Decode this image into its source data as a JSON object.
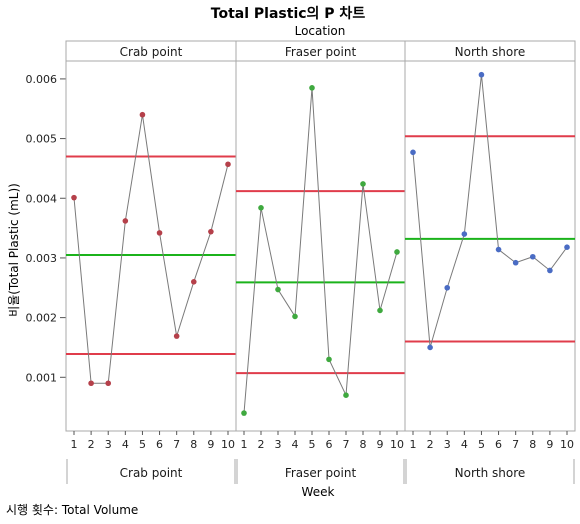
{
  "chart_data": {
    "type": "line",
    "title": "Total Plastic의 P 차트",
    "group_axis_label": "Location",
    "xlabel": "Week",
    "ylabel": "비율(Total Plastic (mL))",
    "footnote": "시행 횟수: Total Volume",
    "ylim": [
      0.0001,
      0.0063
    ],
    "yticks": [
      "0.001",
      "0.002",
      "0.003",
      "0.004",
      "0.005",
      "0.006"
    ],
    "x": [
      1,
      2,
      3,
      4,
      5,
      6,
      7,
      8,
      9,
      10
    ],
    "colors": {
      "ucl_lcl": "#e03c4b",
      "center": "#1bb31b",
      "connector": "#7a7a7a"
    },
    "panels": [
      {
        "name": "Crab point",
        "point_color": "#b5404a",
        "values": [
          0.00401,
          0.0009,
          0.0009,
          0.00362,
          0.0054,
          0.00342,
          0.00169,
          0.0026,
          0.00344,
          0.00457
        ],
        "center": 0.00305,
        "ucl": 0.0047,
        "lcl": 0.00139
      },
      {
        "name": "Fraser point",
        "point_color": "#3fa93f",
        "values": [
          0.0004,
          0.00384,
          0.00247,
          0.00202,
          0.00585,
          0.0013,
          0.0007,
          0.00424,
          0.00212,
          0.0031
        ],
        "center": 0.00259,
        "ucl": 0.00412,
        "lcl": 0.00107
      },
      {
        "name": "North shore",
        "point_color": "#4a6cc4",
        "values": [
          0.00477,
          0.0015,
          0.0025,
          0.0034,
          0.00607,
          0.00314,
          0.00292,
          0.00302,
          0.00279,
          0.00318
        ],
        "center": 0.00332,
        "ucl": 0.00504,
        "lcl": 0.0016
      }
    ]
  }
}
